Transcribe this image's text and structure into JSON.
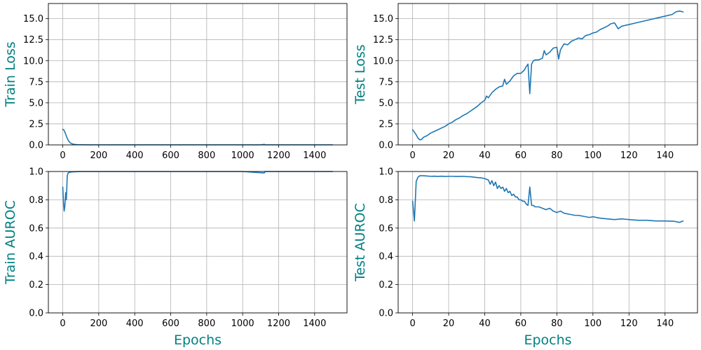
{
  "colors": {
    "series": "#1f77b4",
    "label": "#008080",
    "grid": "#b0b0b0"
  },
  "chart_data": [
    {
      "type": "line",
      "ylabel": "Train Loss",
      "xlabel": "",
      "xlim": [
        -80,
        1580
      ],
      "ylim": [
        0,
        16.8
      ],
      "grid": true,
      "xticks": [
        0,
        200,
        400,
        600,
        800,
        1000,
        1200,
        1400
      ],
      "xticklabels": [
        "0",
        "200",
        "400",
        "600",
        "800",
        "1000",
        "1200",
        "1400"
      ],
      "yticks": [
        0,
        2.5,
        5,
        7.5,
        10,
        12.5,
        15
      ],
      "yticklabels": [
        "0.0",
        "2.5",
        "5.0",
        "7.5",
        "10.0",
        "12.5",
        "15.0"
      ],
      "series": [
        {
          "x": [
            0,
            5,
            10,
            15,
            20,
            25,
            30,
            35,
            40,
            45,
            50,
            60,
            70,
            80,
            100,
            150,
            300,
            600,
            900,
            1100,
            1120,
            1125,
            1130,
            1300,
            1500
          ],
          "y": [
            1.85,
            1.8,
            1.6,
            1.35,
            1.05,
            0.8,
            0.55,
            0.4,
            0.28,
            0.2,
            0.14,
            0.08,
            0.05,
            0.03,
            0.02,
            0.01,
            0.01,
            0.01,
            0.01,
            0.01,
            0.06,
            0.02,
            0.01,
            0.01,
            0.01
          ]
        }
      ]
    },
    {
      "type": "line",
      "ylabel": "Test Loss",
      "xlabel": "",
      "xlim": [
        -8,
        158
      ],
      "ylim": [
        0,
        16.8
      ],
      "grid": true,
      "xticks": [
        0,
        20,
        40,
        60,
        80,
        100,
        120,
        140
      ],
      "xticklabels": [
        "0",
        "20",
        "40",
        "60",
        "80",
        "100",
        "120",
        "140"
      ],
      "yticks": [
        0,
        2.5,
        5,
        7.5,
        10,
        12.5,
        15
      ],
      "yticklabels": [
        "0.0",
        "2.5",
        "5.0",
        "7.5",
        "10.0",
        "12.5",
        "15.0"
      ],
      "series": [
        {
          "x": [
            0,
            1,
            2,
            3,
            4,
            5,
            6,
            8,
            10,
            12,
            14,
            16,
            18,
            20,
            22,
            24,
            26,
            28,
            30,
            32,
            34,
            36,
            38,
            40,
            41,
            42,
            44,
            46,
            48,
            50,
            51,
            52,
            54,
            56,
            58,
            60,
            62,
            63,
            64,
            65,
            66,
            67,
            68,
            70,
            72,
            73,
            74,
            76,
            78,
            80,
            81,
            82,
            84,
            86,
            88,
            90,
            92,
            94,
            96,
            98,
            100,
            102,
            104,
            106,
            108,
            110,
            112,
            114,
            116,
            120,
            124,
            128,
            132,
            136,
            140,
            144,
            146,
            148,
            150
          ],
          "y": [
            1.8,
            1.5,
            1.2,
            0.8,
            0.6,
            0.65,
            0.9,
            1.1,
            1.4,
            1.6,
            1.8,
            2.0,
            2.2,
            2.5,
            2.7,
            3.0,
            3.2,
            3.5,
            3.7,
            4.0,
            4.3,
            4.6,
            5.0,
            5.3,
            5.8,
            5.6,
            6.2,
            6.6,
            6.9,
            7.0,
            7.8,
            7.2,
            7.6,
            8.2,
            8.5,
            8.5,
            8.9,
            9.3,
            9.6,
            6.1,
            9.6,
            10.0,
            10.1,
            10.1,
            10.3,
            11.2,
            10.7,
            11.0,
            11.5,
            11.6,
            10.2,
            11.3,
            12.0,
            11.9,
            12.3,
            12.5,
            12.7,
            12.6,
            13.0,
            13.1,
            13.3,
            13.4,
            13.7,
            13.9,
            14.1,
            14.4,
            14.5,
            13.8,
            14.1,
            14.3,
            14.5,
            14.7,
            14.9,
            15.1,
            15.3,
            15.5,
            15.8,
            15.9,
            15.8
          ]
        }
      ]
    },
    {
      "type": "line",
      "ylabel": "Train AUROC",
      "xlabel": "Epochs",
      "xlim": [
        -80,
        1580
      ],
      "ylim": [
        0,
        1.0
      ],
      "grid": true,
      "xticks": [
        0,
        200,
        400,
        600,
        800,
        1000,
        1200,
        1400
      ],
      "xticklabels": [
        "0",
        "200",
        "400",
        "600",
        "800",
        "1000",
        "1200",
        "1400"
      ],
      "yticks": [
        0,
        0.2,
        0.4,
        0.6,
        0.8,
        1.0
      ],
      "yticklabels": [
        "0.0",
        "0.2",
        "0.4",
        "0.6",
        "0.8",
        "1.0"
      ],
      "series": [
        {
          "x": [
            0,
            4,
            8,
            12,
            16,
            20,
            25,
            30,
            40,
            50,
            60,
            80,
            100,
            200,
            500,
            1000,
            1120,
            1125,
            1130,
            1500
          ],
          "y": [
            0.89,
            0.78,
            0.72,
            0.76,
            0.85,
            0.8,
            0.97,
            0.99,
            0.995,
            0.997,
            0.998,
            0.999,
            1.0,
            1.0,
            1.0,
            1.0,
            0.99,
            1.0,
            1.0,
            1.0
          ]
        }
      ]
    },
    {
      "type": "line",
      "ylabel": "Test AUROC",
      "xlabel": "Epochs",
      "xlim": [
        -8,
        158
      ],
      "ylim": [
        0,
        1.0
      ],
      "grid": true,
      "xticks": [
        0,
        20,
        40,
        60,
        80,
        100,
        120,
        140
      ],
      "xticklabels": [
        "0",
        "20",
        "40",
        "60",
        "80",
        "100",
        "120",
        "140"
      ],
      "yticks": [
        0,
        0.2,
        0.4,
        0.6,
        0.8,
        1.0
      ],
      "yticklabels": [
        "0.0",
        "0.2",
        "0.4",
        "0.6",
        "0.8",
        "1.0"
      ],
      "series": [
        {
          "x": [
            0,
            1,
            2,
            3,
            4,
            5,
            6,
            8,
            10,
            12,
            14,
            16,
            18,
            20,
            22,
            24,
            26,
            28,
            30,
            32,
            34,
            36,
            38,
            40,
            42,
            43,
            44,
            45,
            46,
            47,
            48,
            49,
            50,
            51,
            52,
            53,
            54,
            55,
            56,
            57,
            58,
            59,
            60,
            61,
            62,
            63,
            64,
            65,
            66,
            67,
            68,
            70,
            72,
            74,
            76,
            78,
            80,
            82,
            84,
            86,
            88,
            90,
            92,
            94,
            96,
            98,
            100,
            104,
            108,
            112,
            116,
            120,
            125,
            130,
            135,
            140,
            145,
            148,
            150
          ],
          "y": [
            0.79,
            0.65,
            0.93,
            0.96,
            0.97,
            0.97,
            0.97,
            0.968,
            0.966,
            0.967,
            0.965,
            0.967,
            0.965,
            0.966,
            0.966,
            0.965,
            0.965,
            0.966,
            0.964,
            0.963,
            0.96,
            0.957,
            0.955,
            0.95,
            0.94,
            0.91,
            0.935,
            0.9,
            0.925,
            0.88,
            0.9,
            0.88,
            0.89,
            0.86,
            0.88,
            0.85,
            0.86,
            0.83,
            0.84,
            0.82,
            0.82,
            0.8,
            0.8,
            0.79,
            0.79,
            0.77,
            0.76,
            0.89,
            0.76,
            0.76,
            0.75,
            0.75,
            0.74,
            0.73,
            0.74,
            0.72,
            0.71,
            0.72,
            0.705,
            0.7,
            0.695,
            0.69,
            0.69,
            0.685,
            0.68,
            0.675,
            0.68,
            0.67,
            0.665,
            0.66,
            0.665,
            0.66,
            0.655,
            0.655,
            0.65,
            0.65,
            0.648,
            0.64,
            0.65
          ]
        }
      ]
    }
  ]
}
